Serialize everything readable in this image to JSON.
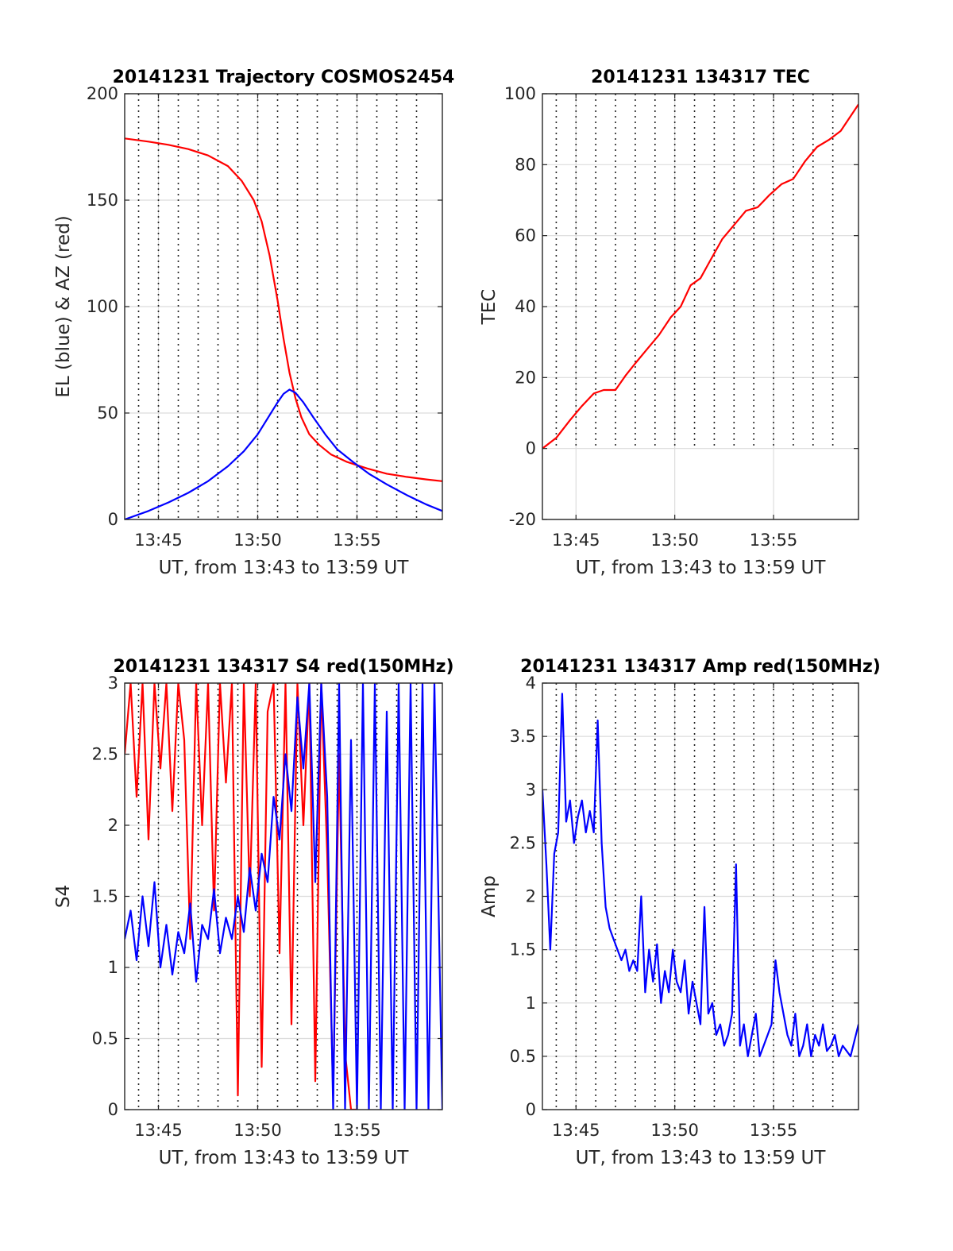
{
  "chart_data": [
    {
      "id": "trajectory",
      "type": "line",
      "title": "20141231 Trajectory COSMOS2454",
      "xlabel": "UT, from 13:43 to 13:59 UT",
      "ylabel": "EL (blue) & AZ (red)",
      "xlim": [
        13.3,
        29.3
      ],
      "ylim": [
        0,
        200
      ],
      "xticks": [
        {
          "v": 15,
          "label": "13:45"
        },
        {
          "v": 20,
          "label": "13:50"
        },
        {
          "v": 25,
          "label": "13:55"
        }
      ],
      "yticks": [
        {
          "v": 0,
          "label": "0"
        },
        {
          "v": 50,
          "label": "50"
        },
        {
          "v": 100,
          "label": "100"
        },
        {
          "v": 150,
          "label": "150"
        },
        {
          "v": 200,
          "label": "200"
        }
      ],
      "vgrid_minutes": [
        14.0,
        15.0,
        16.0,
        17.0,
        18.0,
        19.0,
        20.0,
        21.0,
        22.0,
        23.0,
        24.0,
        25.0,
        26.0,
        27.0,
        28.0
      ],
      "series": [
        {
          "name": "AZ",
          "color": "#ff0000",
          "x": [
            13.3,
            14.5,
            15.5,
            16.5,
            17.5,
            18.5,
            19.2,
            19.8,
            20.2,
            20.6,
            21.0,
            21.3,
            21.6,
            21.9,
            22.2,
            22.6,
            23.1,
            23.7,
            24.5,
            25.5,
            26.5,
            27.5,
            28.5,
            29.3
          ],
          "values": [
            179,
            177.5,
            176,
            174,
            171,
            166,
            159,
            150,
            140,
            124,
            103,
            85,
            69,
            57,
            48,
            40,
            35,
            30.5,
            27,
            24,
            21.5,
            20,
            18.8,
            18
          ]
        },
        {
          "name": "EL",
          "color": "#0000ff",
          "x": [
            13.3,
            14.5,
            15.5,
            16.5,
            17.5,
            18.5,
            19.3,
            20.0,
            20.6,
            21.0,
            21.3,
            21.6,
            21.9,
            22.3,
            22.8,
            23.4,
            24.0,
            24.8,
            25.6,
            26.5,
            27.5,
            28.5,
            29.3
          ],
          "values": [
            0,
            4,
            8,
            12.5,
            18,
            25,
            32,
            40,
            49,
            55,
            59,
            61,
            59.5,
            55,
            48,
            40,
            33,
            27,
            21.5,
            16.5,
            11.5,
            7,
            4
          ]
        }
      ]
    },
    {
      "id": "tec",
      "type": "line",
      "title": "20141231 134317 TEC",
      "xlabel": "UT, from 13:43 to 13:59 UT",
      "ylabel": "TEC",
      "xlim": [
        13.3,
        29.3
      ],
      "ylim": [
        -20,
        100
      ],
      "xticks": [
        {
          "v": 15,
          "label": "13:45"
        },
        {
          "v": 20,
          "label": "13:50"
        },
        {
          "v": 25,
          "label": "13:55"
        }
      ],
      "yticks": [
        {
          "v": -20,
          "label": "-20"
        },
        {
          "v": 0,
          "label": "0"
        },
        {
          "v": 20,
          "label": "20"
        },
        {
          "v": 40,
          "label": "40"
        },
        {
          "v": 60,
          "label": "60"
        },
        {
          "v": 80,
          "label": "80"
        },
        {
          "v": 100,
          "label": "100"
        }
      ],
      "vgrid_minutes": [
        14.0,
        15.0,
        16.0,
        17.0,
        18.0,
        19.0,
        20.0,
        21.0,
        22.0,
        23.0,
        24.0,
        25.0,
        26.0,
        27.0,
        28.0
      ],
      "vgrid_ymax": 100,
      "vgrid_ymin": 0,
      "series": [
        {
          "name": "TEC",
          "color": "#ff0000",
          "x": [
            13.3,
            14.0,
            14.7,
            15.3,
            15.9,
            16.4,
            17.0,
            17.5,
            18.0,
            18.6,
            19.2,
            19.8,
            20.3,
            20.8,
            21.3,
            21.8,
            22.4,
            23.0,
            23.6,
            24.2,
            24.8,
            25.4,
            26.0,
            26.6,
            27.2,
            27.8,
            28.4,
            29.3
          ],
          "values": [
            0,
            3,
            8,
            12,
            15.5,
            16.5,
            16.5,
            20.5,
            24,
            28,
            32,
            37,
            40,
            46,
            48,
            53,
            59,
            63,
            67,
            68,
            71.5,
            74.5,
            76,
            81,
            85,
            87,
            89.5,
            97
          ]
        }
      ]
    },
    {
      "id": "s4",
      "type": "line",
      "title": "20141231 134317 S4 red(150MHz)",
      "xlabel": "UT, from 13:43 to 13:59 UT",
      "ylabel": "S4",
      "xlim": [
        13.3,
        29.3
      ],
      "ylim": [
        0,
        3
      ],
      "xticks": [
        {
          "v": 15,
          "label": "13:45"
        },
        {
          "v": 20,
          "label": "13:50"
        },
        {
          "v": 25,
          "label": "13:55"
        }
      ],
      "yticks": [
        {
          "v": 0,
          "label": "0"
        },
        {
          "v": 0.5,
          "label": "0.5"
        },
        {
          "v": 1,
          "label": "1"
        },
        {
          "v": 1.5,
          "label": "1.5"
        },
        {
          "v": 2,
          "label": "2"
        },
        {
          "v": 2.5,
          "label": "2.5"
        },
        {
          "v": 3,
          "label": "3"
        }
      ],
      "vgrid_minutes": [
        14.0,
        15.0,
        16.0,
        17.0,
        18.0,
        19.0,
        20.0,
        21.0,
        22.0,
        23.0,
        24.0,
        25.0,
        26.0,
        27.0,
        28.0
      ],
      "series": [
        {
          "name": "S4 red",
          "color": "#ff0000",
          "x": [
            13.3,
            13.6,
            13.9,
            14.2,
            14.5,
            14.8,
            15.1,
            15.4,
            15.7,
            16.0,
            16.3,
            16.6,
            16.9,
            17.2,
            17.5,
            17.8,
            18.1,
            18.4,
            18.7,
            19.0,
            19.3,
            19.6,
            19.9,
            20.2,
            20.5,
            20.8,
            21.1,
            21.4,
            21.7,
            22.0,
            22.3,
            22.6,
            22.9,
            23.2,
            23.5,
            23.8,
            24.1,
            24.4,
            24.7,
            25.0
          ],
          "values": [
            2.5,
            3,
            2.2,
            3,
            1.9,
            3,
            2.4,
            3,
            2.1,
            3,
            2.6,
            1.2,
            3,
            2.0,
            3,
            1.4,
            3,
            2.3,
            3,
            0.1,
            3,
            1.5,
            3,
            0.3,
            2.8,
            3,
            1.1,
            3,
            0.6,
            3,
            2.0,
            3,
            0.2,
            3,
            1.8,
            0.1,
            2.5,
            0.4,
            0.0,
            0.0
          ]
        },
        {
          "name": "S4 blue",
          "color": "#0000ff",
          "x": [
            13.3,
            13.6,
            13.9,
            14.2,
            14.5,
            14.8,
            15.1,
            15.4,
            15.7,
            16.0,
            16.3,
            16.6,
            16.9,
            17.2,
            17.5,
            17.8,
            18.1,
            18.4,
            18.7,
            19.0,
            19.3,
            19.6,
            19.9,
            20.2,
            20.5,
            20.8,
            21.1,
            21.4,
            21.7,
            22.0,
            22.3,
            22.6,
            22.9,
            23.2,
            23.5,
            23.8,
            24.1,
            24.4,
            24.7,
            25.0,
            25.3,
            25.6,
            25.9,
            26.2,
            26.5,
            26.8,
            27.1,
            27.4,
            27.7,
            28.0,
            28.3,
            28.6,
            28.9,
            29.3
          ],
          "values": [
            1.2,
            1.4,
            1.05,
            1.5,
            1.15,
            1.6,
            1.0,
            1.3,
            0.95,
            1.25,
            1.1,
            1.45,
            0.9,
            1.3,
            1.2,
            1.55,
            1.1,
            1.35,
            1.2,
            1.5,
            1.25,
            1.7,
            1.4,
            1.8,
            1.6,
            2.2,
            1.9,
            2.5,
            2.1,
            2.9,
            2.4,
            3,
            1.6,
            3,
            2.2,
            0,
            3,
            0,
            2.6,
            0,
            3,
            0,
            3,
            0,
            2.8,
            0,
            3,
            0,
            3,
            0,
            3,
            0,
            3,
            0
          ]
        }
      ]
    },
    {
      "id": "amp",
      "type": "line",
      "title": "20141231 134317 Amp red(150MHz)",
      "xlabel": "UT, from 13:43 to 13:59 UT",
      "ylabel": "Amp",
      "xlim": [
        13.3,
        29.3
      ],
      "ylim": [
        0,
        4
      ],
      "xticks": [
        {
          "v": 15,
          "label": "13:45"
        },
        {
          "v": 20,
          "label": "13:50"
        },
        {
          "v": 25,
          "label": "13:55"
        }
      ],
      "yticks": [
        {
          "v": 0,
          "label": "0"
        },
        {
          "v": 0.5,
          "label": "0.5"
        },
        {
          "v": 1,
          "label": "1"
        },
        {
          "v": 1.5,
          "label": "1.5"
        },
        {
          "v": 2,
          "label": "2"
        },
        {
          "v": 2.5,
          "label": "2.5"
        },
        {
          "v": 3,
          "label": "3"
        },
        {
          "v": 3.5,
          "label": "3.5"
        },
        {
          "v": 4,
          "label": "4"
        }
      ],
      "vgrid_minutes": [
        14.0,
        15.0,
        16.0,
        17.0,
        18.0,
        19.0,
        20.0,
        21.0,
        22.0,
        23.0,
        24.0,
        25.0,
        26.0,
        27.0,
        28.0
      ],
      "series": [
        {
          "name": "Amp",
          "color": "#0000ff",
          "x": [
            13.3,
            13.5,
            13.7,
            13.9,
            14.1,
            14.3,
            14.5,
            14.7,
            14.9,
            15.1,
            15.3,
            15.5,
            15.7,
            15.9,
            16.1,
            16.3,
            16.5,
            16.7,
            16.9,
            17.1,
            17.3,
            17.5,
            17.7,
            17.9,
            18.1,
            18.3,
            18.5,
            18.7,
            18.9,
            19.1,
            19.3,
            19.5,
            19.7,
            19.9,
            20.1,
            20.3,
            20.5,
            20.7,
            20.9,
            21.1,
            21.3,
            21.5,
            21.7,
            21.9,
            22.1,
            22.3,
            22.5,
            22.7,
            22.9,
            23.1,
            23.3,
            23.5,
            23.7,
            23.9,
            24.1,
            24.3,
            24.5,
            24.7,
            24.9,
            25.1,
            25.3,
            25.5,
            25.7,
            25.9,
            26.1,
            26.3,
            26.5,
            26.7,
            26.9,
            27.1,
            27.3,
            27.5,
            27.7,
            27.9,
            28.1,
            28.3,
            28.5,
            28.7,
            28.9,
            29.3
          ],
          "values": [
            3.0,
            2.3,
            1.5,
            2.4,
            2.6,
            3.9,
            2.7,
            2.9,
            2.5,
            2.75,
            2.9,
            2.6,
            2.8,
            2.6,
            3.65,
            2.5,
            1.9,
            1.7,
            1.6,
            1.5,
            1.4,
            1.5,
            1.3,
            1.4,
            1.3,
            2.0,
            1.1,
            1.5,
            1.2,
            1.55,
            1.0,
            1.3,
            1.1,
            1.5,
            1.2,
            1.1,
            1.4,
            0.9,
            1.2,
            1.0,
            0.8,
            1.9,
            0.9,
            1.0,
            0.7,
            0.8,
            0.6,
            0.7,
            0.9,
            2.3,
            0.6,
            0.8,
            0.5,
            0.7,
            0.9,
            0.5,
            0.6,
            0.7,
            0.8,
            1.4,
            1.1,
            0.9,
            0.7,
            0.6,
            0.9,
            0.5,
            0.6,
            0.8,
            0.5,
            0.7,
            0.6,
            0.8,
            0.55,
            0.6,
            0.7,
            0.5,
            0.6,
            0.55,
            0.5,
            0.8
          ]
        }
      ]
    }
  ]
}
